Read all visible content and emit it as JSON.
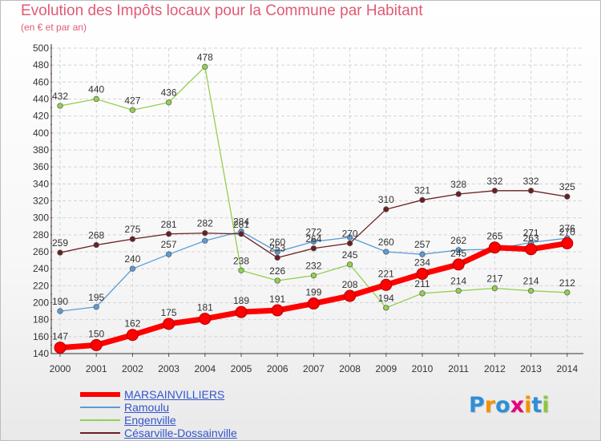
{
  "header": {
    "title": "Evolution des Impôts locaux pour la Commune par Habitant",
    "subtitle": "(en € et par an)"
  },
  "chart_data": {
    "type": "line",
    "title": "Evolution des Impôts locaux pour la Commune par Habitant",
    "subtitle": "(en € et par an)",
    "xlabel": "",
    "ylabel": "",
    "ylim": [
      140,
      500
    ],
    "yticks": [
      140,
      160,
      180,
      200,
      220,
      240,
      260,
      280,
      300,
      320,
      340,
      360,
      380,
      400,
      420,
      440,
      460,
      480,
      500
    ],
    "grid": true,
    "legend_position": "bottom-left",
    "x": [
      "2000",
      "2001",
      "2002",
      "2003",
      "2004",
      "2005",
      "2006",
      "2007",
      "2008",
      "2009",
      "2010",
      "2011",
      "2012",
      "2013",
      "2014"
    ],
    "series": [
      {
        "name": "MARSAINVILLIERS",
        "color": "#ff0000",
        "highlight": true,
        "values": [
          147,
          150,
          162,
          175,
          181,
          189,
          191,
          199,
          208,
          221,
          234,
          245,
          265,
          263,
          270
        ],
        "labels": [
          "147",
          "150",
          "162",
          "175",
          "181",
          "189",
          "191",
          "199",
          "208",
          "221",
          "234",
          "245",
          "265",
          "263",
          "270"
        ]
      },
      {
        "name": "Ramoulu",
        "color": "#5b9bd5",
        "values": [
          190,
          195,
          240,
          257,
          273,
          284,
          260,
          272,
          277,
          260,
          257,
          262,
          263,
          271,
          276
        ],
        "labels": [
          "190",
          "195",
          "240",
          "257",
          "",
          "284",
          "260",
          "272",
          "",
          "260",
          "257",
          "262",
          "",
          "271",
          "276"
        ]
      },
      {
        "name": "Engenville",
        "color": "#92d050",
        "values": [
          432,
          440,
          427,
          436,
          478,
          238,
          226,
          232,
          245,
          194,
          211,
          214,
          217,
          214,
          212
        ],
        "labels": [
          "432",
          "440",
          "427",
          "436",
          "478",
          "238",
          "226",
          "232",
          "245",
          "194",
          "211",
          "214",
          "217",
          "214",
          "212"
        ]
      },
      {
        "name": "Césarville-Dossainville",
        "color": "#6b1f24",
        "values": [
          259,
          268,
          275,
          281,
          282,
          281,
          253,
          264,
          270,
          310,
          321,
          328,
          332,
          332,
          325
        ],
        "labels": [
          "259",
          "268",
          "275",
          "281",
          "282",
          "281",
          "253",
          "264",
          "270",
          "310",
          "321",
          "328",
          "332",
          "332",
          "325"
        ]
      }
    ]
  },
  "legend": {
    "items": [
      {
        "label": "MARSAINVILLIERS",
        "color": "#ff0000"
      },
      {
        "label": "Ramoulu",
        "color": "#5b9bd5"
      },
      {
        "label": "Engenville",
        "color": "#92d050"
      },
      {
        "label": "Césarville-Dossainville",
        "color": "#6b1f24"
      }
    ]
  },
  "logo": {
    "text": "Proxiti",
    "letters": [
      {
        "char": "P",
        "color": "#2e8fd6"
      },
      {
        "char": "r",
        "color": "#f39200"
      },
      {
        "char": "o",
        "color": "#2e8fd6"
      },
      {
        "char": "x",
        "color": "#e6007e"
      },
      {
        "char": "i",
        "color": "#f39200"
      },
      {
        "char": "t",
        "color": "#2e8fd6"
      },
      {
        "char": "i",
        "color": "#8cc63f"
      }
    ]
  }
}
